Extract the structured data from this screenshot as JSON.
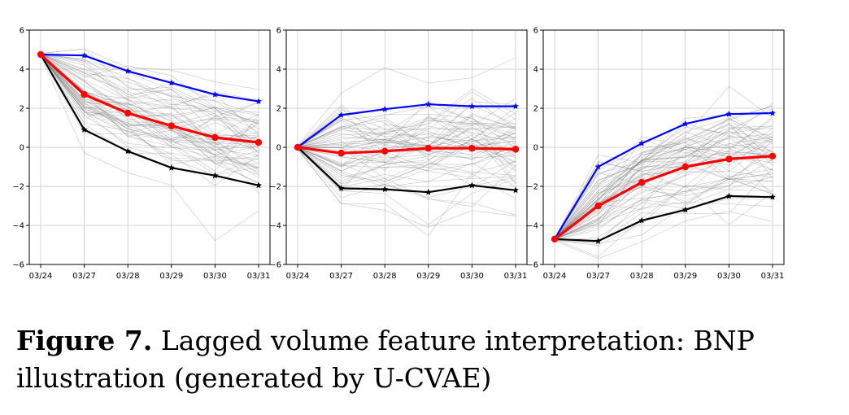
{
  "caption": {
    "label": "Figure 7.",
    "text": "Lagged volume feature interpretation: BNP illustration (generated by U-CVAE)"
  },
  "colors": {
    "upper": "#0000ff",
    "mean": "#ff0000",
    "lower": "#000000",
    "samples": "#808080",
    "grid": "#c8c8c8"
  },
  "chart_data": [
    {
      "type": "line",
      "categories": [
        "03/24",
        "03/27",
        "03/28",
        "03/29",
        "03/30",
        "03/31"
      ],
      "ylim": [
        -6,
        6
      ],
      "yticks": [
        -6,
        -4,
        -2,
        0,
        2,
        4,
        6
      ],
      "grid": true,
      "series": [
        {
          "role": "upper",
          "marker": "star",
          "values": [
            4.75,
            4.7,
            3.9,
            3.3,
            2.7,
            2.35
          ]
        },
        {
          "role": "mean",
          "marker": "circle",
          "values": [
            4.75,
            2.7,
            1.75,
            1.1,
            0.5,
            0.25
          ]
        },
        {
          "role": "lower",
          "marker": "star",
          "values": [
            4.75,
            0.9,
            -0.2,
            -1.05,
            -1.45,
            -1.95
          ]
        }
      ],
      "sample_band": {
        "center": [
          4.75,
          2.7,
          1.75,
          1.1,
          0.5,
          0.25
        ],
        "spread": [
          0.05,
          1.6,
          1.8,
          1.9,
          2.0,
          2.1
        ],
        "count": 60
      }
    },
    {
      "type": "line",
      "categories": [
        "03/24",
        "03/27",
        "03/28",
        "03/29",
        "03/30",
        "03/31"
      ],
      "ylim": [
        -6,
        6
      ],
      "yticks": [
        -6,
        -4,
        -2,
        0,
        2,
        4,
        6
      ],
      "grid": true,
      "series": [
        {
          "role": "upper",
          "marker": "star",
          "values": [
            0.0,
            1.65,
            1.95,
            2.2,
            2.1,
            2.1
          ]
        },
        {
          "role": "mean",
          "marker": "circle",
          "values": [
            0.0,
            -0.3,
            -0.2,
            -0.05,
            -0.05,
            -0.1
          ]
        },
        {
          "role": "lower",
          "marker": "star",
          "values": [
            0.0,
            -2.1,
            -2.15,
            -2.3,
            -1.95,
            -2.2
          ]
        }
      ],
      "sample_band": {
        "center": [
          0.0,
          -0.3,
          -0.2,
          -0.05,
          -0.05,
          -0.1
        ],
        "spread": [
          0.05,
          1.9,
          2.0,
          2.1,
          2.0,
          2.1
        ],
        "count": 60
      }
    },
    {
      "type": "line",
      "categories": [
        "03/24",
        "03/27",
        "03/28",
        "03/29",
        "03/30",
        "03/31"
      ],
      "ylim": [
        -6,
        6
      ],
      "yticks": [
        -6,
        -4,
        -2,
        0,
        2,
        4,
        6
      ],
      "grid": true,
      "series": [
        {
          "role": "upper",
          "marker": "star",
          "values": [
            -4.7,
            -1.0,
            0.2,
            1.2,
            1.7,
            1.75
          ]
        },
        {
          "role": "mean",
          "marker": "circle",
          "values": [
            -4.7,
            -3.0,
            -1.8,
            -1.0,
            -0.6,
            -0.45
          ]
        },
        {
          "role": "lower",
          "marker": "star",
          "values": [
            -4.7,
            -4.8,
            -3.75,
            -3.2,
            -2.5,
            -2.55
          ]
        }
      ],
      "sample_band": {
        "center": [
          -4.7,
          -3.0,
          -1.8,
          -1.0,
          -0.6,
          -0.45
        ],
        "spread": [
          0.05,
          1.8,
          2.0,
          2.1,
          2.1,
          2.1
        ],
        "count": 60
      }
    }
  ]
}
